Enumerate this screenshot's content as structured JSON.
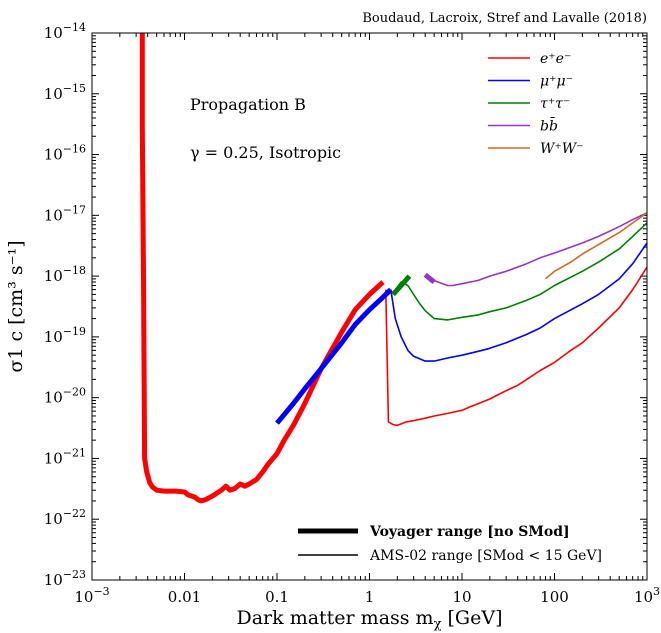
{
  "chart_data": {
    "type": "line",
    "credit": "Boudaud, Lacroix, Stref and Lavalle (2018)",
    "annotations": [
      "Propagation B",
      "γ = 0.25, Isotropic"
    ],
    "xlabel": "Dark matter mass m",
    "xlabel_sub": "χ",
    "xlabel_unit": "[GeV]",
    "ylabel": "σ1 c [cm³ s⁻¹]",
    "xscale": "log",
    "yscale": "log",
    "xlim": [
      0.001,
      1000
    ],
    "ylim": [
      1e-23,
      1e-14
    ],
    "x_ticks": [
      {
        "value": 0.001,
        "base": "10",
        "exp": "−3"
      },
      {
        "value": 0.01,
        "label": "0.01"
      },
      {
        "value": 0.1,
        "label": "0.1"
      },
      {
        "value": 1,
        "label": "1"
      },
      {
        "value": 10,
        "label": "10"
      },
      {
        "value": 100,
        "label": "100"
      },
      {
        "value": 1000,
        "base": "10",
        "exp": "3"
      }
    ],
    "y_ticks": [
      {
        "value": 1e-14,
        "base": "10",
        "exp": "−14"
      },
      {
        "value": 1e-15,
        "base": "10",
        "exp": "−15"
      },
      {
        "value": 1e-16,
        "base": "10",
        "exp": "−16"
      },
      {
        "value": 1e-17,
        "base": "10",
        "exp": "−17"
      },
      {
        "value": 1e-18,
        "base": "10",
        "exp": "−18"
      },
      {
        "value": 1e-19,
        "base": "10",
        "exp": "−19"
      },
      {
        "value": 1e-20,
        "base": "10",
        "exp": "−20"
      },
      {
        "value": 1e-21,
        "base": "10",
        "exp": "−21"
      },
      {
        "value": 1e-22,
        "base": "10",
        "exp": "−22"
      },
      {
        "value": 1e-23,
        "base": "10",
        "exp": "−23"
      }
    ],
    "legend_position": "top-right",
    "range_legend_position": "bottom-right",
    "range_legend": [
      {
        "label": "Voyager range [no SMod]",
        "style": "thick"
      },
      {
        "label": "AMS-02 range [SMod < 15 GeV]",
        "style": "thin"
      }
    ],
    "series": [
      {
        "name": "e⁺e⁻",
        "color": "#ff0000",
        "voyager": {
          "x": [
            0.0035,
            0.0035,
            0.0036,
            0.0037,
            0.0039,
            0.0042,
            0.0045,
            0.005,
            0.006,
            0.008,
            0.01,
            0.011,
            0.012,
            0.013,
            0.014,
            0.015,
            0.017,
            0.02,
            0.025,
            0.028,
            0.031,
            0.035,
            0.04,
            0.045,
            0.05,
            0.06,
            0.07,
            0.08,
            0.1,
            0.12,
            0.15,
            0.2,
            0.3,
            0.5,
            0.7,
            1.0,
            1.4
          ],
          "y": [
            1e-14,
            3e-16,
            1e-18,
            1e-21,
            6e-22,
            4e-22,
            3.4e-22,
            3e-22,
            2.9e-22,
            2.9e-22,
            2.8e-22,
            2.5e-22,
            2.4e-22,
            2.3e-22,
            2.1e-22,
            2e-22,
            2.1e-22,
            2.4e-22,
            3e-22,
            3.5e-22,
            3e-22,
            3.2e-22,
            3.8e-22,
            3.5e-22,
            3.8e-22,
            4.5e-22,
            6e-22,
            8e-22,
            1.2e-21,
            2e-21,
            3.5e-21,
            8e-21,
            3e-20,
            1.2e-19,
            2.8e-19,
            5e-19,
            8e-19
          ]
        },
        "ams": {
          "x": [
            1.5,
            1.6,
            1.8,
            2.0,
            2.5,
            3,
            4,
            5,
            7,
            10,
            12,
            15,
            20,
            30,
            40,
            50,
            70,
            100,
            150,
            200,
            300,
            500,
            700,
            1000
          ],
          "y": [
            6e-19,
            4e-21,
            3.6e-21,
            3.5e-21,
            4e-21,
            4.2e-21,
            4.6e-21,
            5e-21,
            5.5e-21,
            6.2e-21,
            7e-21,
            8e-21,
            9.5e-21,
            1.3e-20,
            1.6e-20,
            2e-20,
            2.8e-20,
            3.8e-20,
            6e-20,
            8e-20,
            1.4e-19,
            3e-19,
            6e-19,
            1.4e-18
          ]
        }
      },
      {
        "name": "μ⁺μ⁻",
        "color": "#0000ff",
        "voyager": {
          "x": [
            0.1,
            0.15,
            0.2,
            0.3,
            0.5,
            0.7,
            1.0,
            1.4,
            1.7
          ],
          "y": [
            3.8e-21,
            8e-21,
            1.4e-20,
            3e-20,
            8e-20,
            1.6e-19,
            2.8e-19,
            4.5e-19,
            6e-19
          ]
        },
        "ams": {
          "x": [
            1.7,
            1.9,
            2.2,
            2.6,
            3,
            4,
            5,
            7,
            10,
            15,
            20,
            30,
            50,
            70,
            100,
            200,
            300,
            500,
            700,
            1000
          ],
          "y": [
            6e-19,
            2e-19,
            1e-19,
            6e-20,
            4.8e-20,
            4e-20,
            4e-20,
            4.5e-20,
            5e-20,
            5.8e-20,
            6.5e-20,
            8e-20,
            1.1e-19,
            1.4e-19,
            2e-19,
            3.5e-19,
            5e-19,
            9e-19,
            1.6e-18,
            3.5e-18
          ]
        }
      },
      {
        "name": "τ⁺τ⁻",
        "color": "#008000",
        "voyager": {
          "x": [
            1.8,
            2.2,
            2.7
          ],
          "y": [
            5e-19,
            7e-19,
            1e-18
          ]
        },
        "ams": {
          "x": [
            1.9,
            2.2,
            2.6,
            3,
            3.5,
            4,
            5,
            7,
            10,
            15,
            20,
            30,
            50,
            70,
            100,
            200,
            300,
            500,
            700,
            1000
          ],
          "y": [
            6e-19,
            8e-19,
            7e-19,
            5e-19,
            3.5e-19,
            2.7e-19,
            2e-19,
            1.9e-19,
            2.1e-19,
            2.3e-19,
            2.6e-19,
            3e-19,
            4e-19,
            5e-19,
            7e-19,
            1.2e-18,
            1.7e-18,
            2.8e-18,
            4.5e-18,
            7.5e-18
          ]
        }
      },
      {
        "name": "bb̄",
        "color": "#9933cc",
        "voyager": {
          "x": [
            4.0,
            5.0
          ],
          "y": [
            1.05e-18,
            8e-19
          ]
        },
        "ams": {
          "x": [
            4.5,
            5.5,
            7,
            8,
            10,
            15,
            20,
            30,
            50,
            70,
            100,
            200,
            300,
            500,
            700,
            1000
          ],
          "y": [
            9e-19,
            8e-19,
            7e-19,
            7e-19,
            7.5e-19,
            8.5e-19,
            1e-18,
            1.2e-18,
            1.6e-18,
            2e-18,
            2.4e-18,
            3.5e-18,
            4.5e-18,
            6.5e-18,
            8.5e-18,
            1.1e-17
          ]
        }
      },
      {
        "name": "W⁺W⁻",
        "color": "#d2691e",
        "ams": {
          "x": [
            80,
            100,
            150,
            200,
            300,
            500,
            700,
            1000
          ],
          "y": [
            9e-19,
            1.2e-18,
            1.7e-18,
            2.3e-18,
            3.3e-18,
            5.2e-18,
            7.5e-18,
            1.1e-17
          ]
        }
      }
    ]
  }
}
